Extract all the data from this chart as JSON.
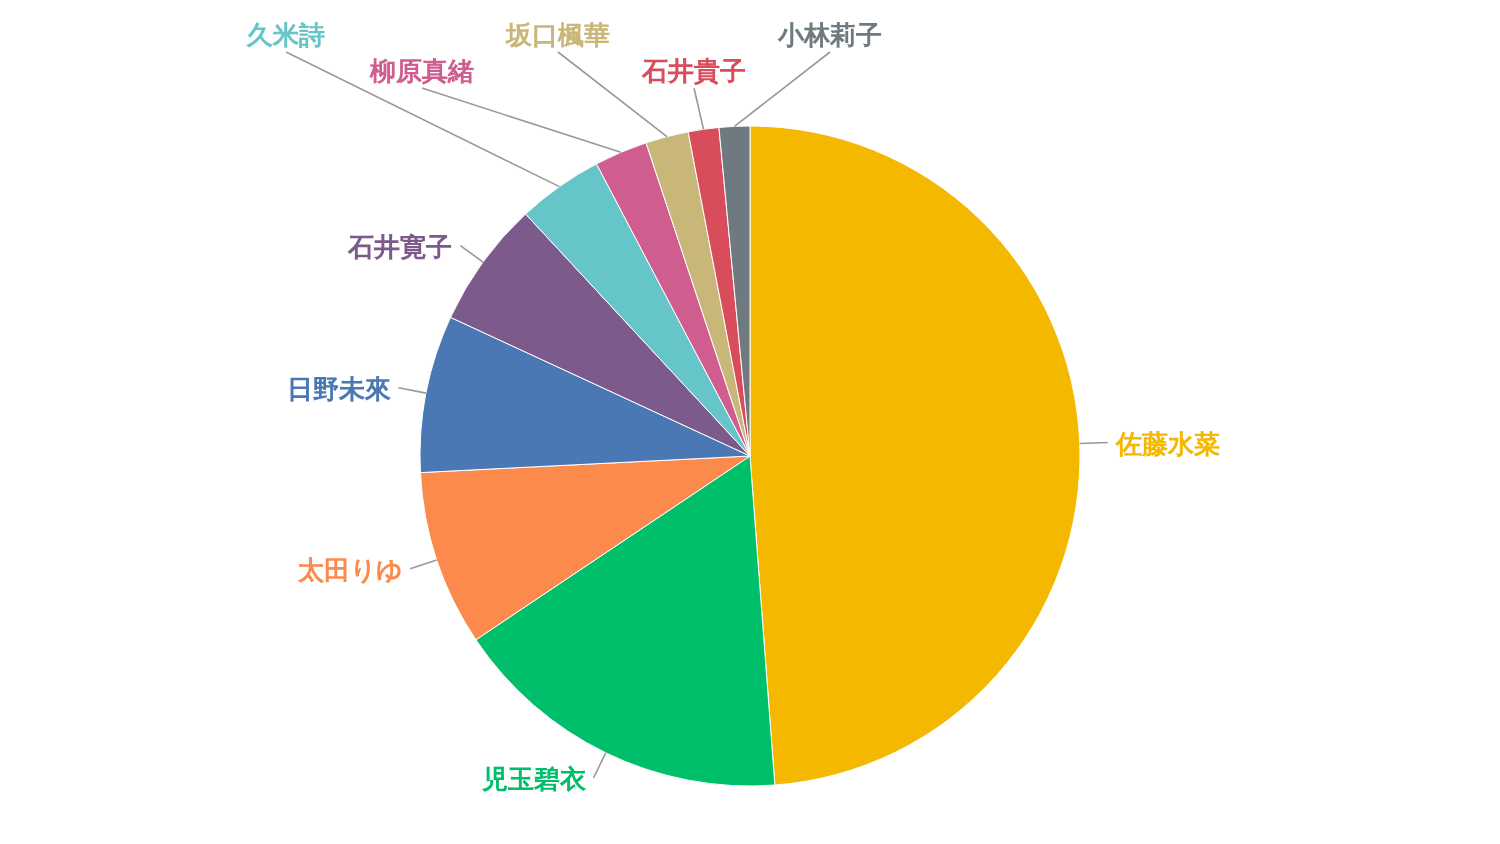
{
  "chart_data": {
    "type": "pie",
    "categories": [
      "佐藤水菜",
      "児玉碧衣",
      "太田りゆ",
      "日野未來",
      "石井寛子",
      "久米詩",
      "柳原真緒",
      "坂口楓華",
      "石井貴子",
      "小林莉子"
    ],
    "values": [
      48.8,
      16.8,
      8.6,
      7.7,
      6.2,
      4.2,
      2.6,
      2.1,
      1.5,
      1.5
    ],
    "colors": [
      "#f5b800",
      "#00bf6a",
      "#fb8a4c",
      "#4a78b5",
      "#7d5a8c",
      "#66c5c8",
      "#cf5d8f",
      "#c8b778",
      "#d94c5c",
      "#6f7a80"
    ]
  }
}
